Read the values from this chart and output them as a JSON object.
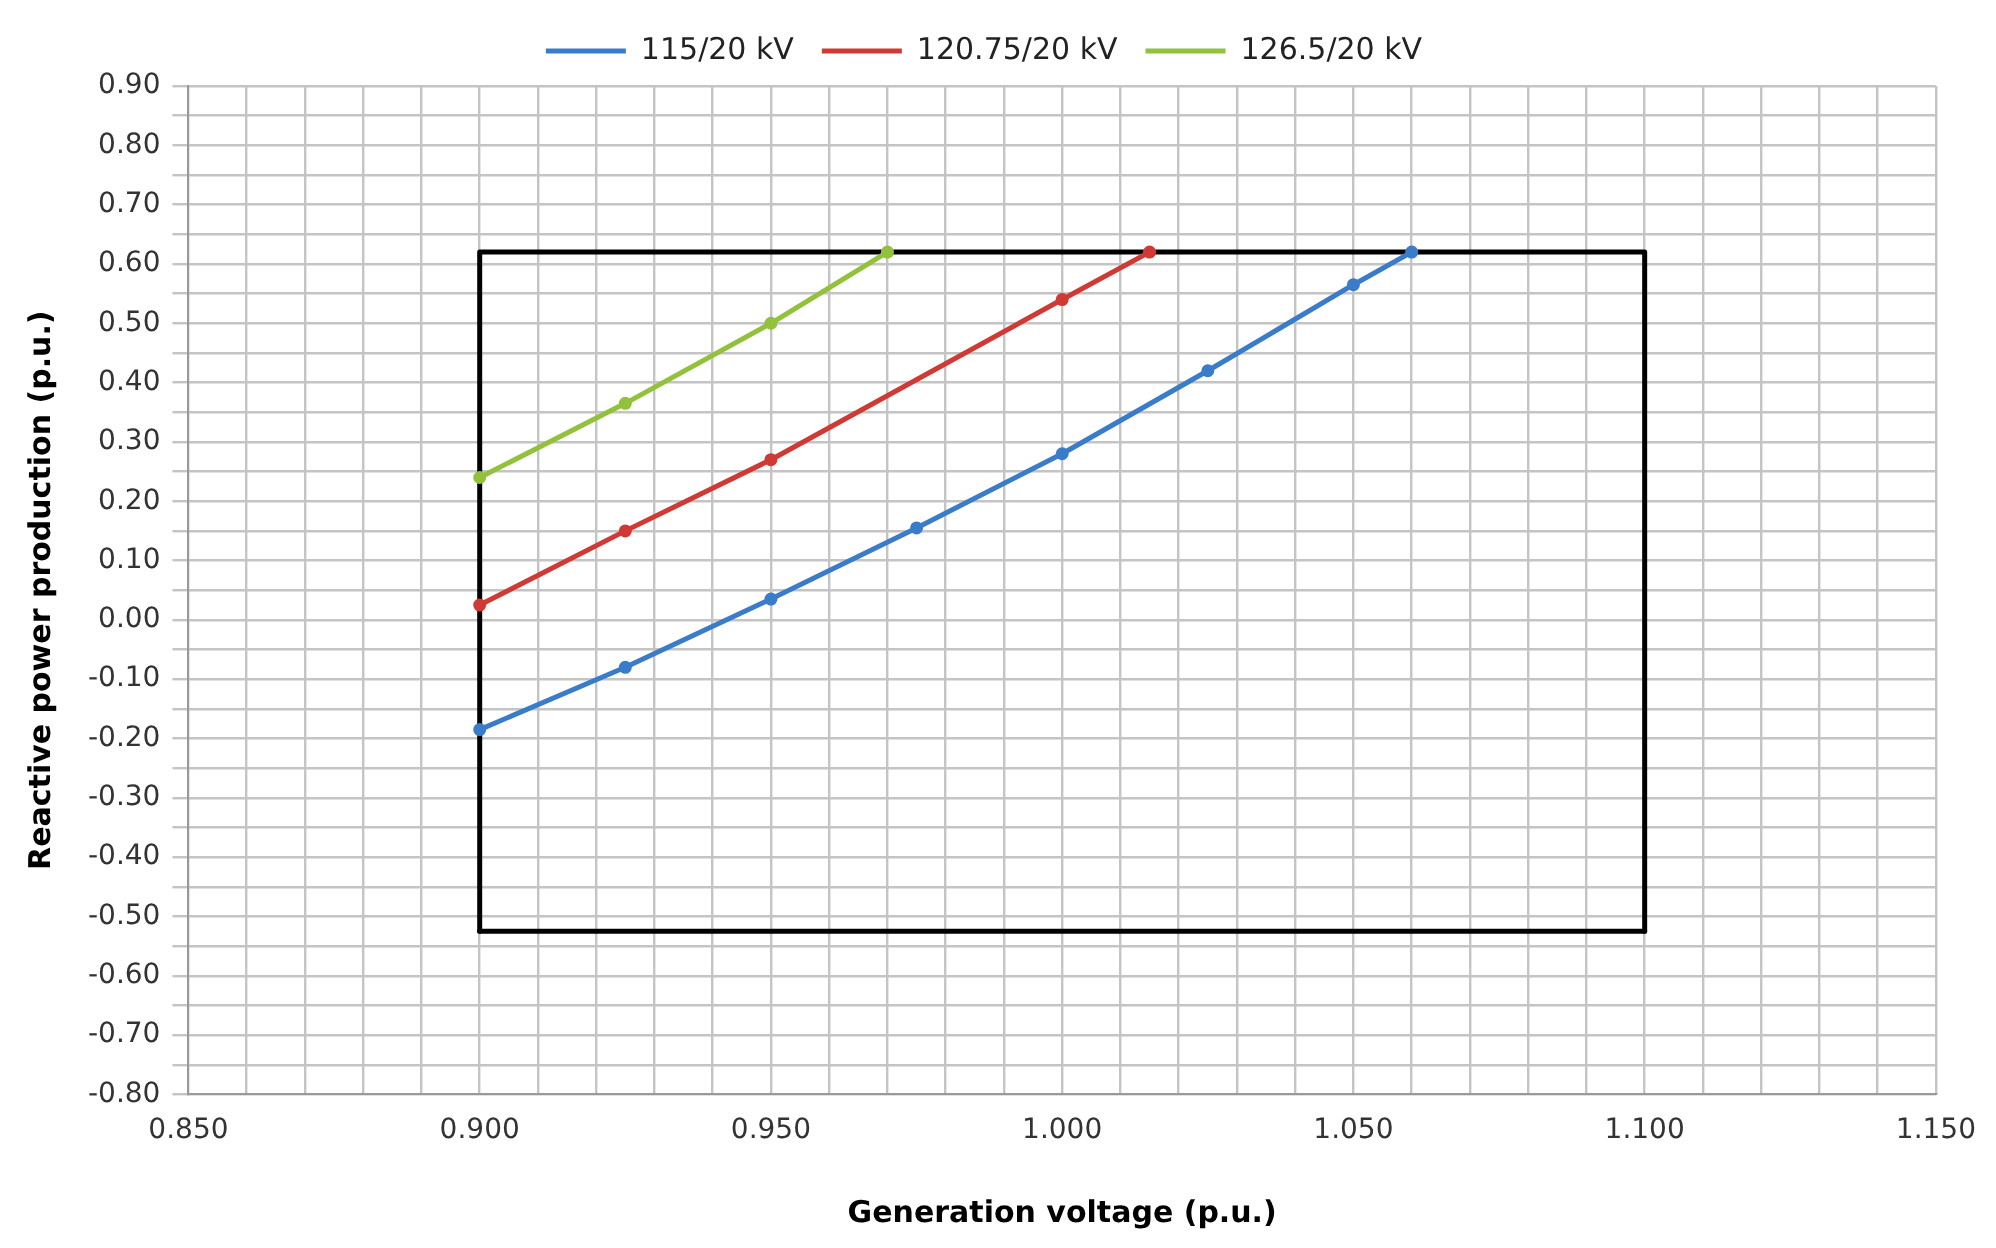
{
  "chart_data": {
    "type": "line",
    "xlabel": "Generation voltage (p.u.)",
    "ylabel": "Reactive power production (p.u.)",
    "legend": "top",
    "grid": true,
    "marker": "circle",
    "line_style": "solid",
    "xlim": [
      0.85,
      1.15
    ],
    "xticks": [
      {
        "value": 0.85,
        "label": "0.850"
      },
      {
        "value": 0.86,
        "label": null
      },
      {
        "value": 0.87,
        "label": null
      },
      {
        "value": 0.88,
        "label": null
      },
      {
        "value": 0.89,
        "label": null
      },
      {
        "value": 0.9,
        "label": "0.900"
      },
      {
        "value": 0.91,
        "label": null
      },
      {
        "value": 0.92,
        "label": null
      },
      {
        "value": 0.93,
        "label": null
      },
      {
        "value": 0.94,
        "label": null
      },
      {
        "value": 0.95,
        "label": "0.950"
      },
      {
        "value": 0.96,
        "label": null
      },
      {
        "value": 0.97,
        "label": null
      },
      {
        "value": 0.98,
        "label": null
      },
      {
        "value": 0.99,
        "label": null
      },
      {
        "value": 1.0,
        "label": "1.000"
      },
      {
        "value": 1.01,
        "label": null
      },
      {
        "value": 1.02,
        "label": null
      },
      {
        "value": 1.03,
        "label": null
      },
      {
        "value": 1.04,
        "label": null
      },
      {
        "value": 1.05,
        "label": "1.050"
      },
      {
        "value": 1.06,
        "label": null
      },
      {
        "value": 1.07,
        "label": null
      },
      {
        "value": 1.08,
        "label": null
      },
      {
        "value": 1.09,
        "label": null
      },
      {
        "value": 1.1,
        "label": "1.100"
      },
      {
        "value": 1.11,
        "label": null
      },
      {
        "value": 1.12,
        "label": null
      },
      {
        "value": 1.13,
        "label": null
      },
      {
        "value": 1.14,
        "label": null
      },
      {
        "value": 1.15,
        "label": "1.150"
      }
    ],
    "ylim": [
      -0.8,
      0.9
    ],
    "yticks": [
      {
        "value": -0.8,
        "label": "-0.80"
      },
      {
        "value": -0.75,
        "label": null
      },
      {
        "value": -0.7,
        "label": "-0.70"
      },
      {
        "value": -0.65,
        "label": null
      },
      {
        "value": -0.6,
        "label": "-0.60"
      },
      {
        "value": -0.55,
        "label": null
      },
      {
        "value": -0.5,
        "label": "-0.50"
      },
      {
        "value": -0.45,
        "label": null
      },
      {
        "value": -0.4,
        "label": "-0.40"
      },
      {
        "value": -0.35,
        "label": null
      },
      {
        "value": -0.3,
        "label": "-0.30"
      },
      {
        "value": -0.25,
        "label": null
      },
      {
        "value": -0.2,
        "label": "-0.20"
      },
      {
        "value": -0.15,
        "label": null
      },
      {
        "value": -0.1,
        "label": "-0.10"
      },
      {
        "value": -0.05,
        "label": null
      },
      {
        "value": 0,
        "label": "0.00"
      },
      {
        "value": 0.05,
        "label": null
      },
      {
        "value": 0.1,
        "label": "0.10"
      },
      {
        "value": 0.15,
        "label": null
      },
      {
        "value": 0.2,
        "label": "0.20"
      },
      {
        "value": 0.25,
        "label": null
      },
      {
        "value": 0.3,
        "label": "0.30"
      },
      {
        "value": 0.35,
        "label": null
      },
      {
        "value": 0.4,
        "label": "0.40"
      },
      {
        "value": 0.45,
        "label": null
      },
      {
        "value": 0.5,
        "label": "0.50"
      },
      {
        "value": 0.55,
        "label": null
      },
      {
        "value": 0.6,
        "label": "0.60"
      },
      {
        "value": 0.65,
        "label": null
      },
      {
        "value": 0.7,
        "label": "0.70"
      },
      {
        "value": 0.75,
        "label": null
      },
      {
        "value": 0.8,
        "label": "0.80"
      },
      {
        "value": 0.85,
        "label": null
      },
      {
        "value": 0.9,
        "label": "0.90"
      }
    ],
    "series": [
      {
        "name": "115/20 kV",
        "color": "#3a7cc9",
        "x": [
          0.9,
          0.925,
          0.95,
          0.975,
          1.0,
          1.025,
          1.05,
          1.06
        ],
        "values": [
          -0.185,
          -0.08,
          0.035,
          0.155,
          0.28,
          0.42,
          0.565,
          0.62
        ]
      },
      {
        "name": "120.75/20 kV",
        "color": "#d03a35",
        "x": [
          0.9,
          0.925,
          0.95,
          1.0,
          1.015
        ],
        "values": [
          0.025,
          0.15,
          0.27,
          0.54,
          0.62
        ]
      },
      {
        "name": "126.5/20 kV",
        "color": "#92c13c",
        "x": [
          0.9,
          0.925,
          0.95,
          0.97
        ],
        "values": [
          0.24,
          0.365,
          0.5,
          0.62
        ]
      },
      {
        "color": "#000000",
        "marker": "none",
        "x": [
          0.9,
          0.9,
          1.1,
          1.1
        ],
        "values": [
          -0.525,
          0.62,
          0.62,
          -0.525
        ]
      },
      {
        "color": "#000000",
        "marker": "none",
        "x": [
          0.9,
          1.1
        ],
        "values": [
          -0.525,
          -0.525
        ]
      }
    ]
  }
}
